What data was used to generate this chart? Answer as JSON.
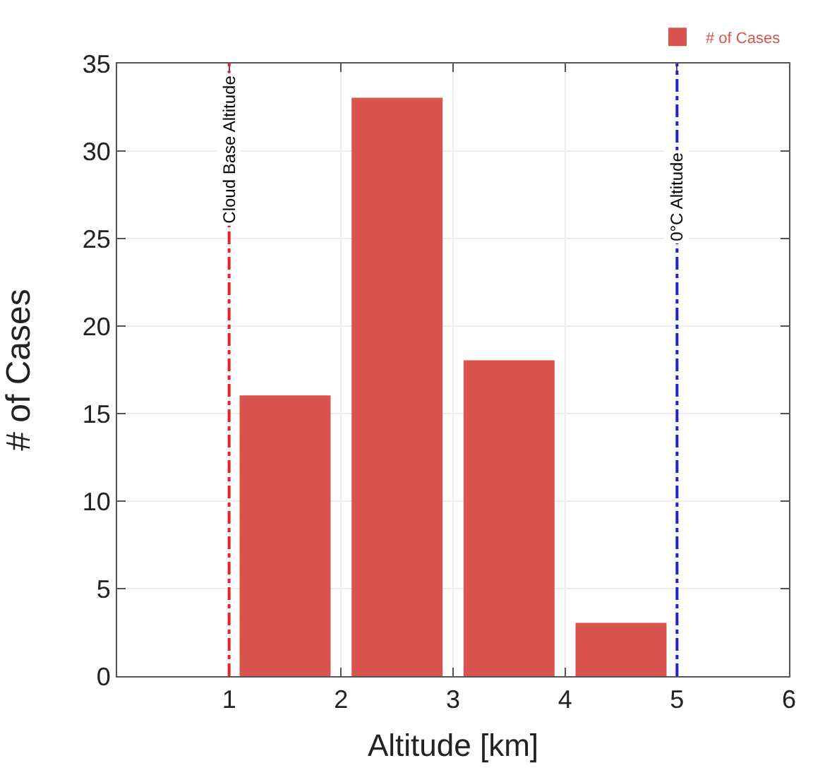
{
  "chart_data": {
    "type": "bar",
    "xlabel": "Altitude [km]",
    "ylabel": "# of Cases",
    "x": [
      1.5,
      2.5,
      3.5,
      4.5
    ],
    "series": [
      {
        "name": "# of Cases",
        "color": "#d9534f",
        "values": [
          16,
          33,
          18,
          3
        ]
      }
    ],
    "xlim": [
      0,
      6
    ],
    "xticks": [
      1,
      2,
      3,
      4,
      5,
      6
    ],
    "ylim": [
      0,
      35
    ],
    "yticks": [
      0,
      5,
      10,
      15,
      20,
      25,
      30,
      35
    ],
    "grid": true,
    "legend": "top right",
    "ref_lines": [
      {
        "axis": "x",
        "value": 1,
        "label": "Cloud Base Altitude",
        "color": "#e8232a",
        "line_style": "dashdot"
      },
      {
        "axis": "x",
        "value": 5,
        "label": "0°C Altitude",
        "color": "#2222cc",
        "line_style": "dashdot"
      }
    ]
  }
}
